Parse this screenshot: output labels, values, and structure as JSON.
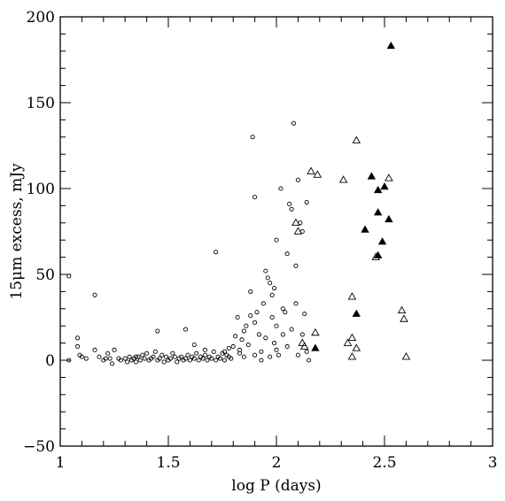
{
  "chart_data": {
    "type": "scatter",
    "title": "",
    "xlabel": "log P (days)",
    "ylabel": "15μm excess, mJy",
    "xlim": [
      1,
      3
    ],
    "ylim": [
      -50,
      200
    ],
    "x_ticks": [
      1,
      1.5,
      2,
      2.5,
      3
    ],
    "x_tick_labels": [
      "1",
      "1.5",
      "2",
      "2.5",
      "3"
    ],
    "y_ticks": [
      -50,
      0,
      50,
      100,
      150,
      200
    ],
    "y_tick_labels": [
      "−50",
      "0",
      "50",
      "100",
      "150",
      "200"
    ],
    "grid": false,
    "legend": "none",
    "series": [
      {
        "marker": "open-circle",
        "points": [
          [
            1.04,
            49
          ],
          [
            1.04,
            0
          ],
          [
            1.08,
            13
          ],
          [
            1.08,
            8
          ],
          [
            1.09,
            3
          ],
          [
            1.1,
            2
          ],
          [
            1.12,
            1
          ],
          [
            1.16,
            38
          ],
          [
            1.16,
            6
          ],
          [
            1.18,
            2
          ],
          [
            1.2,
            0
          ],
          [
            1.21,
            1
          ],
          [
            1.22,
            4
          ],
          [
            1.23,
            1
          ],
          [
            1.24,
            -2
          ],
          [
            1.25,
            6
          ],
          [
            1.27,
            1
          ],
          [
            1.28,
            0
          ],
          [
            1.3,
            1
          ],
          [
            1.31,
            -1
          ],
          [
            1.32,
            2
          ],
          [
            1.33,
            0
          ],
          [
            1.34,
            1
          ],
          [
            1.35,
            -1
          ],
          [
            1.36,
            2
          ],
          [
            1.37,
            0
          ],
          [
            1.38,
            3
          ],
          [
            1.39,
            1
          ],
          [
            1.4,
            4
          ],
          [
            1.41,
            0
          ],
          [
            1.42,
            1
          ],
          [
            1.43,
            2
          ],
          [
            1.44,
            5
          ],
          [
            1.45,
            0
          ],
          [
            1.46,
            1
          ],
          [
            1.47,
            3
          ],
          [
            1.48,
            -1
          ],
          [
            1.49,
            2
          ],
          [
            1.5,
            0
          ],
          [
            1.51,
            1
          ],
          [
            1.52,
            4
          ],
          [
            1.53,
            2
          ],
          [
            1.54,
            -1
          ],
          [
            1.55,
            1
          ],
          [
            1.56,
            2
          ],
          [
            1.57,
            0
          ],
          [
            1.58,
            1
          ],
          [
            1.59,
            3
          ],
          [
            1.6,
            0
          ],
          [
            1.61,
            2
          ],
          [
            1.62,
            1
          ],
          [
            1.63,
            4
          ],
          [
            1.64,
            0
          ],
          [
            1.65,
            2
          ],
          [
            1.66,
            1
          ],
          [
            1.67,
            3
          ],
          [
            1.68,
            0
          ],
          [
            1.69,
            2
          ],
          [
            1.7,
            1
          ],
          [
            1.71,
            5
          ],
          [
            1.72,
            0
          ],
          [
            1.73,
            2
          ],
          [
            1.74,
            1
          ],
          [
            1.75,
            4
          ],
          [
            1.76,
            0
          ],
          [
            1.77,
            3
          ],
          [
            1.78,
            2
          ],
          [
            1.79,
            1
          ],
          [
            1.8,
            8
          ],
          [
            1.81,
            14
          ],
          [
            1.82,
            25
          ],
          [
            1.83,
            6
          ],
          [
            1.84,
            12
          ],
          [
            1.85,
            17
          ],
          [
            1.86,
            20
          ],
          [
            1.87,
            9
          ],
          [
            1.88,
            26
          ],
          [
            1.88,
            40
          ],
          [
            1.89,
            130
          ],
          [
            1.9,
            95
          ],
          [
            1.9,
            22
          ],
          [
            1.91,
            28
          ],
          [
            1.92,
            15
          ],
          [
            1.93,
            5
          ],
          [
            1.94,
            33
          ],
          [
            1.95,
            52
          ],
          [
            1.96,
            48
          ],
          [
            1.97,
            45
          ],
          [
            1.98,
            38
          ],
          [
            1.98,
            25
          ],
          [
            1.99,
            10
          ],
          [
            2.0,
            20
          ],
          [
            2.0,
            70
          ],
          [
            2.01,
            3
          ],
          [
            2.02,
            100
          ],
          [
            2.03,
            15
          ],
          [
            2.04,
            28
          ],
          [
            2.05,
            62
          ],
          [
            2.06,
            91
          ],
          [
            2.07,
            88
          ],
          [
            2.08,
            138
          ],
          [
            2.09,
            55
          ],
          [
            2.09,
            33
          ],
          [
            2.1,
            105
          ],
          [
            2.11,
            80
          ],
          [
            2.12,
            15
          ],
          [
            2.13,
            27
          ],
          [
            2.14,
            5
          ],
          [
            2.15,
            0
          ],
          [
            1.58,
            18
          ],
          [
            1.62,
            9
          ],
          [
            1.67,
            6
          ],
          [
            1.72,
            63
          ],
          [
            1.76,
            5
          ],
          [
            1.45,
            17
          ],
          [
            1.35,
            2
          ],
          [
            1.93,
            0
          ],
          [
            1.97,
            2
          ],
          [
            2.0,
            6
          ],
          [
            1.85,
            2
          ],
          [
            1.9,
            3
          ],
          [
            1.78,
            7
          ],
          [
            1.83,
            4
          ],
          [
            1.95,
            13
          ],
          [
            2.05,
            8
          ],
          [
            2.1,
            3
          ],
          [
            2.12,
            75
          ],
          [
            2.14,
            92
          ],
          [
            2.07,
            18
          ],
          [
            2.03,
            30
          ],
          [
            1.99,
            42
          ]
        ]
      },
      {
        "marker": "open-triangle",
        "points": [
          [
            2.09,
            80
          ],
          [
            2.1,
            75
          ],
          [
            2.12,
            10
          ],
          [
            2.13,
            8
          ],
          [
            2.16,
            110
          ],
          [
            2.19,
            108
          ],
          [
            2.18,
            16
          ],
          [
            2.31,
            105
          ],
          [
            2.33,
            10
          ],
          [
            2.35,
            13
          ],
          [
            2.35,
            2
          ],
          [
            2.35,
            37
          ],
          [
            2.37,
            7
          ],
          [
            2.37,
            128
          ],
          [
            2.46,
            60
          ],
          [
            2.52,
            106
          ],
          [
            2.58,
            29
          ],
          [
            2.59,
            24
          ],
          [
            2.6,
            2
          ]
        ]
      },
      {
        "marker": "filled-triangle",
        "points": [
          [
            2.18,
            7
          ],
          [
            2.37,
            27
          ],
          [
            2.41,
            76
          ],
          [
            2.44,
            107
          ],
          [
            2.47,
            99
          ],
          [
            2.47,
            86
          ],
          [
            2.47,
            61
          ],
          [
            2.49,
            69
          ],
          [
            2.5,
            101
          ],
          [
            2.52,
            82
          ],
          [
            2.53,
            183
          ]
        ]
      }
    ]
  }
}
